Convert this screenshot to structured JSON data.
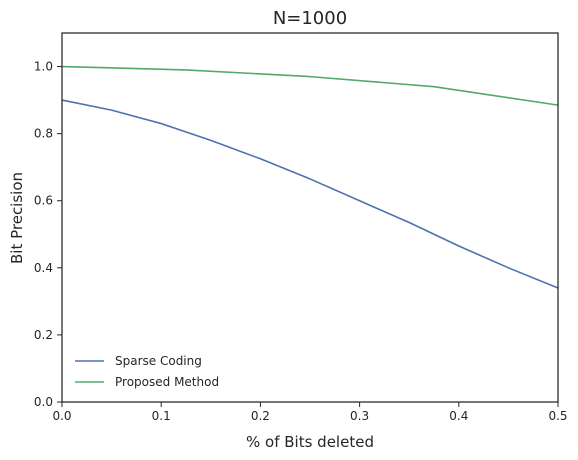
{
  "chart_data": {
    "type": "line",
    "title": "N=1000",
    "xlabel": "% of Bits deleted",
    "ylabel": "Bit Precision",
    "xlim": [
      0.0,
      0.5
    ],
    "ylim": [
      0.0,
      1.1
    ],
    "xticks": [
      "0.0",
      "0.1",
      "0.2",
      "0.3",
      "0.4",
      "0.5"
    ],
    "yticks": [
      "0.0",
      "0.2",
      "0.4",
      "0.6",
      "0.8",
      "1.0"
    ],
    "grid": false,
    "legend_position": "lower-left",
    "series": [
      {
        "name": "Sparse Coding",
        "color": "#4c72b0",
        "x": [
          0.0,
          0.05,
          0.1,
          0.15,
          0.2,
          0.25,
          0.3,
          0.35,
          0.4,
          0.45,
          0.5
        ],
        "y": [
          0.9,
          0.87,
          0.83,
          0.78,
          0.725,
          0.665,
          0.6,
          0.535,
          0.465,
          0.4,
          0.34
        ]
      },
      {
        "name": "Proposed Method",
        "color": "#55a868",
        "x": [
          0.0,
          0.125,
          0.25,
          0.375,
          0.5
        ],
        "y": [
          1.0,
          0.99,
          0.97,
          0.94,
          0.885
        ]
      }
    ]
  }
}
